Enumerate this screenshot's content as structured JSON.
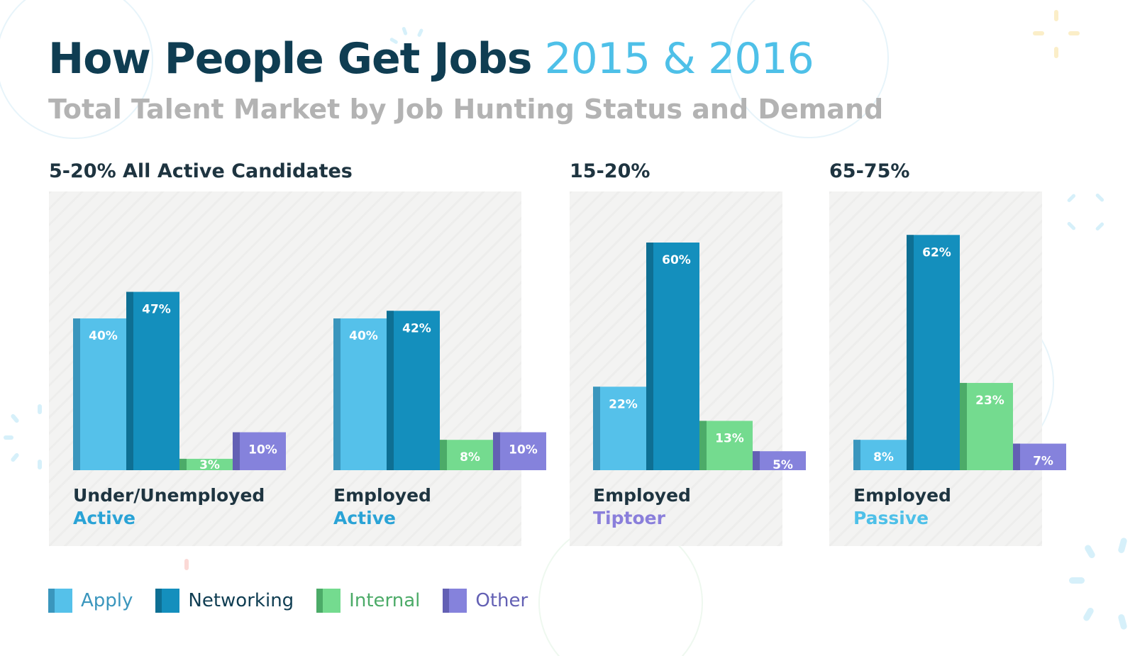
{
  "header": {
    "title_main": "How People Get Jobs",
    "title_accent": "2015 & 2016",
    "subtitle": "Total Talent Market by Job Hunting Status and Demand"
  },
  "groups": [
    {
      "heading": "5-20% All Active Candidates"
    },
    {
      "heading": "15-20%"
    },
    {
      "heading": "65-75%"
    }
  ],
  "categories": [
    {
      "line1": "Under/Unemployed",
      "line2": "Active"
    },
    {
      "line1": "Employed",
      "line2": "Active"
    },
    {
      "line1": "Employed",
      "line2": "Tiptoer"
    },
    {
      "line1": "Employed",
      "line2": "Passive"
    }
  ],
  "colors": {
    "title": "#0f3d52",
    "accent": "#4ec0e8",
    "subtitle": "#b3b3b3",
    "text_dark": "#1e3440",
    "tiptoer": "#8a7fdb",
    "passive": "#4ec0e8",
    "active": "#2aa3d6"
  },
  "chart_data": {
    "type": "bar",
    "categories": [
      "Under/Unemployed Active",
      "Employed Active",
      "Employed Tiptoer",
      "Employed Passive"
    ],
    "series": [
      {
        "name": "Apply",
        "values": [
          40,
          40,
          22,
          8
        ],
        "color": "#55c1ea",
        "edge": "#3a96bd"
      },
      {
        "name": "Networking",
        "values": [
          47,
          42,
          60,
          62
        ],
        "color": "#148fbd",
        "edge": "#0e6f93"
      },
      {
        "name": "Internal",
        "values": [
          3,
          8,
          13,
          23
        ],
        "color": "#74db8f",
        "edge": "#4cab68"
      },
      {
        "name": "Other",
        "values": [
          10,
          10,
          5,
          7
        ],
        "color": "#8582dc",
        "edge": "#6360b4"
      }
    ],
    "data_labels": [
      [
        "40%",
        "47%",
        "3%",
        "10%"
      ],
      [
        "40%",
        "42%",
        "8%",
        "10%"
      ],
      [
        "22%",
        "60%",
        "13%",
        "5%"
      ],
      [
        "8%",
        "62%",
        "23%",
        "7%"
      ]
    ],
    "ylim": [
      0,
      100
    ],
    "legend": "bottom-left",
    "grid": false
  }
}
